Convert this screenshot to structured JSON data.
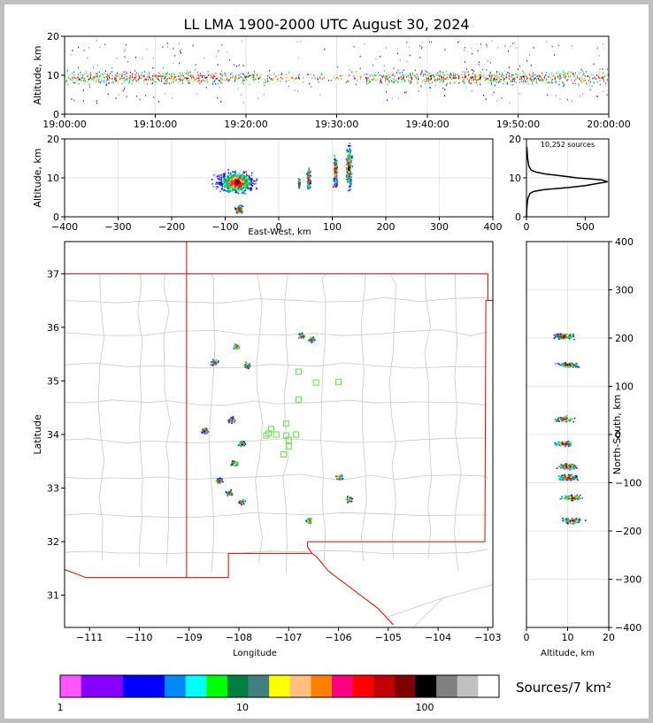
{
  "title": "LL LMA 1900-2000 UTC August 30, 2024",
  "chart_data": [
    {
      "type": "scatter",
      "panel": "altitude-time",
      "ylabel": "Altitude, km",
      "xlabel": "",
      "ylim": [
        0,
        20
      ],
      "yticks": [
        "0",
        "10",
        "20"
      ],
      "xticks": [
        "19:00:00",
        "19:10:00",
        "19:20:00",
        "19:30:00",
        "19:40:00",
        "19:50:00",
        "20:00:00"
      ],
      "dense_altitude_band_km": [
        5,
        15
      ],
      "peak_altitude_km": 9.5
    },
    {
      "type": "scatter",
      "panel": "altitude-east-west",
      "xlabel": "East-West, km",
      "ylabel": "Altitude, km",
      "xlim": [
        -400,
        400
      ],
      "ylim": [
        0,
        20
      ],
      "xticks": [
        "−400",
        "−300",
        "−200",
        "−100",
        "0",
        "100",
        "200",
        "300",
        "400"
      ],
      "yticks": [
        "0",
        "10",
        "20"
      ],
      "clusters": [
        {
          "x_range": [
            -145,
            -40
          ],
          "alt_range": [
            6,
            14
          ],
          "peak_x": -80,
          "peak_alt": 9
        },
        {
          "x_range": [
            -85,
            -65
          ],
          "alt_range": [
            1,
            4
          ],
          "peak_x": -75,
          "peak_alt": 2
        },
        {
          "x_range": [
            35,
            40
          ],
          "alt_range": [
            7,
            11
          ],
          "peak_x": 37,
          "peak_alt": 9
        },
        {
          "x_range": [
            50,
            60
          ],
          "alt_range": [
            6,
            15
          ],
          "peak_x": 55,
          "peak_alt": 10
        },
        {
          "x_range": [
            100,
            110
          ],
          "alt_range": [
            7,
            19
          ],
          "peak_x": 105,
          "peak_alt": 12
        },
        {
          "x_range": [
            125,
            140
          ],
          "alt_range": [
            3,
            20
          ],
          "peak_x": 130,
          "peak_alt": 13
        }
      ]
    },
    {
      "type": "line",
      "panel": "altitude-histogram",
      "annotation": "10,252 sources",
      "xlim": [
        0,
        700
      ],
      "ylim": [
        0,
        20
      ],
      "xticks": [
        "0",
        "500"
      ],
      "yticks": [
        "0",
        "10",
        "20"
      ],
      "x": [
        0,
        2,
        5,
        8,
        15,
        30,
        60,
        150,
        350,
        500,
        690,
        640,
        430,
        300,
        160,
        80,
        40,
        20,
        10,
        5,
        2
      ],
      "y": [
        0,
        2,
        3,
        4,
        5,
        6,
        6.5,
        7,
        7.5,
        8,
        9,
        9.5,
        10,
        10.5,
        11,
        11.5,
        12,
        13,
        15,
        17,
        18
      ]
    },
    {
      "type": "scatter",
      "panel": "plan-view-map",
      "xlabel": "Longitude",
      "ylabel": "Latitude",
      "xlim": [
        -111.5,
        -102.9
      ],
      "ylim": [
        30.4,
        37.6
      ],
      "xticks": [
        "−111",
        "−110",
        "−109",
        "−108",
        "−107",
        "−106",
        "−105",
        "−104",
        "−103"
      ],
      "yticks": [
        "31",
        "32",
        "33",
        "34",
        "35",
        "36",
        "37"
      ],
      "clusters": [
        {
          "lon": -108.5,
          "lat": 35.35
        },
        {
          "lon": -107.85,
          "lat": 35.3
        },
        {
          "lon": -108.05,
          "lat": 35.65
        },
        {
          "lon": -106.75,
          "lat": 35.85
        },
        {
          "lon": -106.55,
          "lat": 35.78
        },
        {
          "lon": -108.15,
          "lat": 34.28
        },
        {
          "lon": -108.7,
          "lat": 34.08
        },
        {
          "lon": -107.95,
          "lat": 33.83
        },
        {
          "lon": -108.1,
          "lat": 33.47
        },
        {
          "lon": -108.4,
          "lat": 33.15
        },
        {
          "lon": -108.2,
          "lat": 32.92
        },
        {
          "lon": -107.95,
          "lat": 32.75
        },
        {
          "lon": -106.0,
          "lat": 33.22
        },
        {
          "lon": -105.8,
          "lat": 32.8
        },
        {
          "lon": -106.6,
          "lat": 32.4
        }
      ],
      "stations": [
        {
          "lon": -106.8,
          "lat": 35.17
        },
        {
          "lon": -106.45,
          "lat": 34.97
        },
        {
          "lon": -106.0,
          "lat": 34.98
        },
        {
          "lon": -106.8,
          "lat": 34.65
        },
        {
          "lon": -107.05,
          "lat": 34.2
        },
        {
          "lon": -107.35,
          "lat": 34.1
        },
        {
          "lon": -107.25,
          "lat": 34.0
        },
        {
          "lon": -107.45,
          "lat": 33.98
        },
        {
          "lon": -107.05,
          "lat": 33.98
        },
        {
          "lon": -106.85,
          "lat": 34.0
        },
        {
          "lon": -107.0,
          "lat": 33.9
        },
        {
          "lon": -107.0,
          "lat": 33.78
        },
        {
          "lon": -107.1,
          "lat": 33.63
        },
        {
          "lon": -107.4,
          "lat": 34.02
        }
      ]
    },
    {
      "type": "scatter",
      "panel": "altitude-north-south",
      "xlabel": "Altitude, km",
      "ylabel": "North-South, km",
      "xlim": [
        0,
        20
      ],
      "ylim": [
        -400,
        400
      ],
      "xticks": [
        "0",
        "10",
        "20"
      ],
      "yticks": [
        "−400",
        "−300",
        "−200",
        "−100",
        "0",
        "100",
        "200",
        "300",
        "400"
      ],
      "clusters": [
        {
          "ns": 205,
          "alt": 9
        },
        {
          "ns": 145,
          "alt": 10
        },
        {
          "ns": 33,
          "alt": 9
        },
        {
          "ns": -18,
          "alt": 9
        },
        {
          "ns": -65,
          "alt": 10
        },
        {
          "ns": -88,
          "alt": 10
        },
        {
          "ns": -130,
          "alt": 11
        },
        {
          "ns": -178,
          "alt": 11
        }
      ]
    }
  ],
  "colorbar": {
    "label": "Sources/7 km²",
    "tick_labels": [
      "1",
      "10",
      "100"
    ],
    "colors": [
      "#ff55ff",
      "#8800ff",
      "#8800ff",
      "#0000ff",
      "#0000ff",
      "#0088ff",
      "#00ffff",
      "#00ff00",
      "#008040",
      "#408080",
      "#ffff00",
      "#ffc080",
      "#ff8000",
      "#ff0080",
      "#ff0000",
      "#c00000",
      "#800000",
      "#000000",
      "#808080",
      "#c0c0c0",
      "#ffffff"
    ]
  }
}
